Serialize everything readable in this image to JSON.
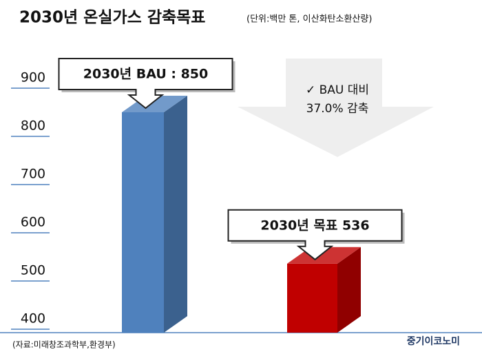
{
  "chart_data": {
    "type": "bar3d",
    "title": "2030년 온실가스 감축목표",
    "subtitle": "(단위:백만 톤, 이산화탄소환산량)",
    "categories": [
      null,
      null
    ],
    "values": [
      850,
      536
    ],
    "value_labels": [
      "2030년 BAU : 850",
      "2030년 목표 536"
    ],
    "colors": [
      "#4f81bd",
      "#c00000"
    ],
    "ylim": [
      400,
      900
    ],
    "yticks": [
      400,
      500,
      600,
      700,
      800,
      900
    ],
    "annotation": [
      "✓ BAU 대비",
      "37.0% 감축"
    ],
    "source": "(자료:미래창조과학부,환경부)",
    "brand": "중기이코노미"
  }
}
